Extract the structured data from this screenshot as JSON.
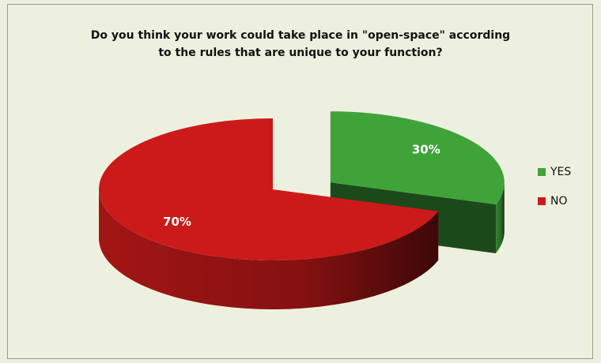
{
  "chart_data": {
    "type": "pie",
    "title": "Do you think your work could take place in \"open-space\" according to the rules that are unique to your function?",
    "categories": [
      "YES",
      "NO"
    ],
    "values": [
      30,
      70
    ],
    "value_labels": [
      "30%",
      "70%"
    ],
    "colors": [
      "#3fa33a",
      "#cc1a1a"
    ],
    "legend": "right"
  }
}
